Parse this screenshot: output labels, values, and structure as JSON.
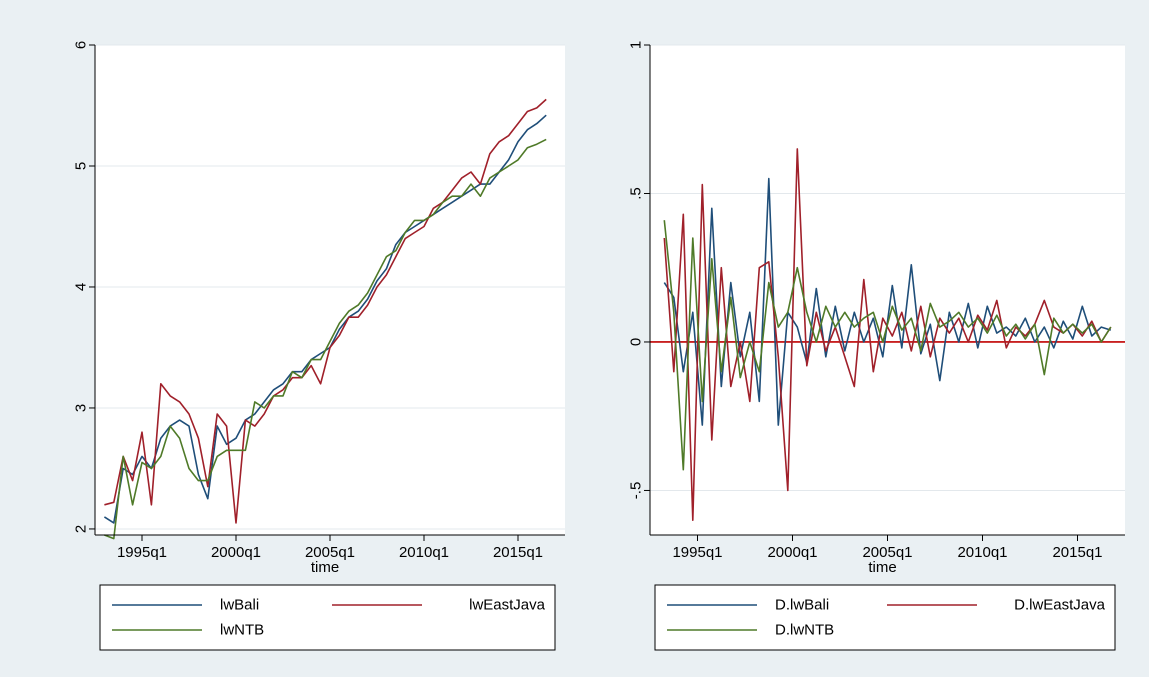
{
  "chart_data": [
    {
      "type": "line",
      "xlabel": "time",
      "ylabel": "",
      "xticks": [
        "1995q1",
        "2000q1",
        "2005q1",
        "2010q1",
        "2015q1"
      ],
      "xtick_values": [
        1995.0,
        2000.0,
        2005.0,
        2010.0,
        2015.0
      ],
      "xlim": [
        1992.5,
        2017.5
      ],
      "yticks": [
        "2",
        "3",
        "4",
        "5",
        "6"
      ],
      "ytick_values": [
        2,
        3,
        4,
        5,
        6
      ],
      "ylim": [
        1.95,
        6.0
      ],
      "grid": true,
      "legend": "bottom",
      "series": [
        {
          "name": "lwBali",
          "color": "#1f4e79",
          "x": [
            1993.0,
            1993.5,
            1994.0,
            1994.5,
            1995.0,
            1995.5,
            1996.0,
            1996.5,
            1997.0,
            1997.5,
            1998.0,
            1998.5,
            1999.0,
            1999.5,
            2000.0,
            2000.5,
            2001.0,
            2001.5,
            2002.0,
            2002.5,
            2003.0,
            2003.5,
            2004.0,
            2004.5,
            2005.0,
            2005.5,
            2006.0,
            2006.5,
            2007.0,
            2007.5,
            2008.0,
            2008.5,
            2009.0,
            2009.5,
            2010.0,
            2010.5,
            2011.0,
            2011.5,
            2012.0,
            2012.5,
            2013.0,
            2013.5,
            2014.0,
            2014.5,
            2015.0,
            2015.5,
            2016.0,
            2016.5
          ],
          "y": [
            2.1,
            2.05,
            2.5,
            2.45,
            2.6,
            2.5,
            2.75,
            2.85,
            2.9,
            2.85,
            2.45,
            2.25,
            2.85,
            2.7,
            2.75,
            2.9,
            2.95,
            3.05,
            3.15,
            3.2,
            3.3,
            3.3,
            3.4,
            3.45,
            3.5,
            3.65,
            3.75,
            3.8,
            3.9,
            4.05,
            4.15,
            4.35,
            4.45,
            4.5,
            4.55,
            4.6,
            4.65,
            4.7,
            4.75,
            4.8,
            4.85,
            4.85,
            4.95,
            5.05,
            5.2,
            5.3,
            5.35,
            5.42
          ]
        },
        {
          "name": "lwEastJava",
          "color": "#a0202a",
          "x": [
            1993.0,
            1993.5,
            1994.0,
            1994.5,
            1995.0,
            1995.5,
            1996.0,
            1996.5,
            1997.0,
            1997.5,
            1998.0,
            1998.5,
            1999.0,
            1999.5,
            2000.0,
            2000.5,
            2001.0,
            2001.5,
            2002.0,
            2002.5,
            2003.0,
            2003.5,
            2004.0,
            2004.5,
            2005.0,
            2005.5,
            2006.0,
            2006.5,
            2007.0,
            2007.5,
            2008.0,
            2008.5,
            2009.0,
            2009.5,
            2010.0,
            2010.5,
            2011.0,
            2011.5,
            2012.0,
            2012.5,
            2013.0,
            2013.5,
            2014.0,
            2014.5,
            2015.0,
            2015.5,
            2016.0,
            2016.5
          ],
          "y": [
            2.2,
            2.22,
            2.6,
            2.4,
            2.8,
            2.2,
            3.2,
            3.1,
            3.05,
            2.95,
            2.75,
            2.35,
            2.95,
            2.85,
            2.05,
            2.9,
            2.85,
            2.95,
            3.1,
            3.15,
            3.25,
            3.25,
            3.35,
            3.2,
            3.5,
            3.6,
            3.75,
            3.75,
            3.85,
            4.0,
            4.1,
            4.25,
            4.4,
            4.45,
            4.5,
            4.65,
            4.7,
            4.8,
            4.9,
            4.95,
            4.85,
            5.1,
            5.2,
            5.25,
            5.35,
            5.45,
            5.48,
            5.55
          ]
        },
        {
          "name": "lwNTB",
          "color": "#4f7a28",
          "x": [
            1993.0,
            1993.5,
            1994.0,
            1994.5,
            1995.0,
            1995.5,
            1996.0,
            1996.5,
            1997.0,
            1997.5,
            1998.0,
            1998.5,
            1999.0,
            1999.5,
            2000.0,
            2000.5,
            2001.0,
            2001.5,
            2002.0,
            2002.5,
            2003.0,
            2003.5,
            2004.0,
            2004.5,
            2005.0,
            2005.5,
            2006.0,
            2006.5,
            2007.0,
            2007.5,
            2008.0,
            2008.5,
            2009.0,
            2009.5,
            2010.0,
            2010.5,
            2011.0,
            2011.5,
            2012.0,
            2012.5,
            2013.0,
            2013.5,
            2014.0,
            2014.5,
            2015.0,
            2015.5,
            2016.0,
            2016.5
          ],
          "y": [
            1.95,
            1.92,
            2.6,
            2.2,
            2.55,
            2.5,
            2.6,
            2.85,
            2.75,
            2.5,
            2.4,
            2.4,
            2.6,
            2.65,
            2.65,
            2.65,
            3.05,
            3.0,
            3.1,
            3.1,
            3.3,
            3.25,
            3.4,
            3.4,
            3.55,
            3.7,
            3.8,
            3.85,
            3.95,
            4.1,
            4.25,
            4.3,
            4.45,
            4.55,
            4.55,
            4.6,
            4.7,
            4.75,
            4.75,
            4.85,
            4.75,
            4.9,
            4.95,
            5.0,
            5.05,
            5.15,
            5.18,
            5.22
          ]
        }
      ]
    },
    {
      "type": "line",
      "xlabel": "time",
      "ylabel": "",
      "xticks": [
        "1995q1",
        "2000q1",
        "2005q1",
        "2010q1",
        "2015q1"
      ],
      "xtick_values": [
        1995.0,
        2000.0,
        2005.0,
        2010.0,
        2015.0
      ],
      "xlim": [
        1992.5,
        2017.5
      ],
      "yticks": [
        "-.5",
        "0",
        ".5",
        "1"
      ],
      "ytick_values": [
        -0.5,
        0,
        0.5,
        1
      ],
      "ylim": [
        -0.65,
        1.0
      ],
      "grid": true,
      "reference_line": {
        "y": 0,
        "color": "#c00000"
      },
      "legend": "bottom",
      "series": [
        {
          "name": "D.lwBali",
          "color": "#1f4e79",
          "x": [
            1993.25,
            1993.75,
            1994.25,
            1994.75,
            1995.25,
            1995.75,
            1996.25,
            1996.75,
            1997.25,
            1997.75,
            1998.25,
            1998.75,
            1999.25,
            1999.75,
            2000.25,
            2000.75,
            2001.25,
            2001.75,
            2002.25,
            2002.75,
            2003.25,
            2003.75,
            2004.25,
            2004.75,
            2005.25,
            2005.75,
            2006.25,
            2006.75,
            2007.25,
            2007.75,
            2008.25,
            2008.75,
            2009.25,
            2009.75,
            2010.25,
            2010.75,
            2011.25,
            2011.75,
            2012.25,
            2012.75,
            2013.25,
            2013.75,
            2014.25,
            2014.75,
            2015.25,
            2015.75,
            2016.25,
            2016.75
          ],
          "y": [
            0.2,
            0.15,
            -0.1,
            0.1,
            -0.28,
            0.45,
            -0.15,
            0.2,
            -0.05,
            0.1,
            -0.2,
            0.55,
            -0.28,
            0.1,
            0.05,
            -0.07,
            0.18,
            -0.05,
            0.12,
            -0.03,
            0.1,
            0.0,
            0.08,
            -0.05,
            0.19,
            -0.02,
            0.26,
            -0.04,
            0.06,
            -0.13,
            0.1,
            0.0,
            0.13,
            -0.02,
            0.12,
            0.03,
            0.05,
            0.02,
            0.08,
            0.0,
            0.05,
            -0.02,
            0.07,
            0.01,
            0.12,
            0.02,
            0.05,
            0.04
          ]
        },
        {
          "name": "D.lwEastJava",
          "color": "#a0202a",
          "x": [
            1993.25,
            1993.75,
            1994.25,
            1994.75,
            1995.25,
            1995.75,
            1996.25,
            1996.75,
            1997.25,
            1997.75,
            1998.25,
            1998.75,
            1999.25,
            1999.75,
            2000.25,
            2000.75,
            2001.25,
            2001.75,
            2002.25,
            2002.75,
            2003.25,
            2003.75,
            2004.25,
            2004.75,
            2005.25,
            2005.75,
            2006.25,
            2006.75,
            2007.25,
            2007.75,
            2008.25,
            2008.75,
            2009.25,
            2009.75,
            2010.25,
            2010.75,
            2011.25,
            2011.75,
            2012.25,
            2012.75,
            2013.25,
            2013.75,
            2014.25,
            2014.75,
            2015.25,
            2015.75,
            2016.25,
            2016.75
          ],
          "y": [
            0.35,
            -0.1,
            0.43,
            -0.6,
            0.53,
            -0.33,
            0.25,
            -0.15,
            0.0,
            -0.2,
            0.25,
            0.27,
            -0.05,
            -0.5,
            0.65,
            -0.08,
            0.1,
            -0.03,
            0.05,
            -0.05,
            -0.15,
            0.21,
            -0.1,
            0.08,
            0.02,
            0.1,
            -0.03,
            0.12,
            -0.05,
            0.08,
            0.03,
            0.08,
            0.0,
            0.09,
            0.04,
            0.14,
            -0.02,
            0.05,
            0.02,
            0.06,
            0.14,
            0.05,
            0.03,
            0.06,
            0.02,
            0.07,
            0.0,
            0.05
          ]
        },
        {
          "name": "D.lwNTB",
          "color": "#4f7a28",
          "x": [
            1993.25,
            1993.75,
            1994.25,
            1994.75,
            1995.25,
            1995.75,
            1996.25,
            1996.75,
            1997.25,
            1997.75,
            1998.25,
            1998.75,
            1999.25,
            1999.75,
            2000.25,
            2000.75,
            2001.25,
            2001.75,
            2002.25,
            2002.75,
            2003.25,
            2003.75,
            2004.25,
            2004.75,
            2005.25,
            2005.75,
            2006.25,
            2006.75,
            2007.25,
            2007.75,
            2008.25,
            2008.75,
            2009.25,
            2009.75,
            2010.25,
            2010.75,
            2011.25,
            2011.75,
            2012.25,
            2012.75,
            2013.25,
            2013.75,
            2014.25,
            2014.75,
            2015.25,
            2015.75,
            2016.25,
            2016.75
          ],
          "y": [
            0.41,
            0.1,
            -0.43,
            0.35,
            -0.2,
            0.28,
            -0.1,
            0.15,
            -0.12,
            0.0,
            -0.1,
            0.2,
            0.05,
            0.1,
            0.25,
            0.1,
            0.0,
            0.12,
            0.05,
            0.1,
            0.05,
            0.08,
            0.1,
            0.0,
            0.12,
            0.04,
            0.08,
            -0.03,
            0.13,
            0.05,
            0.07,
            0.1,
            0.05,
            0.08,
            0.03,
            0.09,
            0.02,
            0.06,
            0.01,
            0.06,
            -0.11,
            0.08,
            0.03,
            0.06,
            0.03,
            0.06,
            0.0,
            0.05
          ]
        }
      ]
    }
  ]
}
